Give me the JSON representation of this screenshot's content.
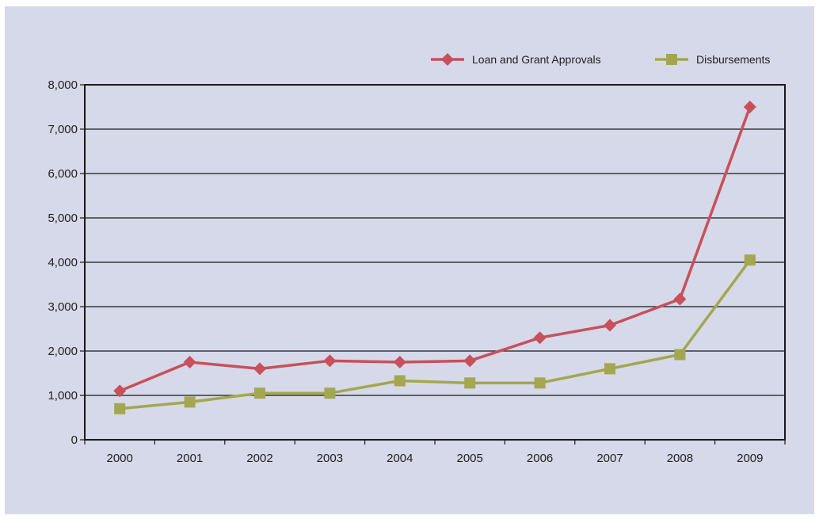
{
  "chart_data": {
    "type": "line",
    "title": "",
    "xlabel": "",
    "ylabel": "",
    "categories": [
      "2000",
      "2001",
      "2002",
      "2003",
      "2004",
      "2005",
      "2006",
      "2007",
      "2008",
      "2009"
    ],
    "ylim": [
      0,
      8000
    ],
    "yticks": [
      0,
      1000,
      2000,
      3000,
      4000,
      5000,
      6000,
      7000,
      8000
    ],
    "ytick_labels": [
      "0",
      "1,000",
      "2,000",
      "3,000",
      "4,000",
      "5,000",
      "6,000",
      "7,000",
      "8,000"
    ],
    "grid": true,
    "legend_position": "top-right",
    "series": [
      {
        "name": "Loan and Grant Approvals",
        "marker": "diamond",
        "color": "#c8505a",
        "values": [
          1100,
          1750,
          1600,
          1780,
          1750,
          1780,
          2300,
          2580,
          3170,
          7500
        ]
      },
      {
        "name": "Disbursements",
        "marker": "square",
        "color": "#a3a74f",
        "values": [
          700,
          850,
          1050,
          1050,
          1330,
          1280,
          1280,
          1600,
          1920,
          4050
        ]
      }
    ]
  }
}
